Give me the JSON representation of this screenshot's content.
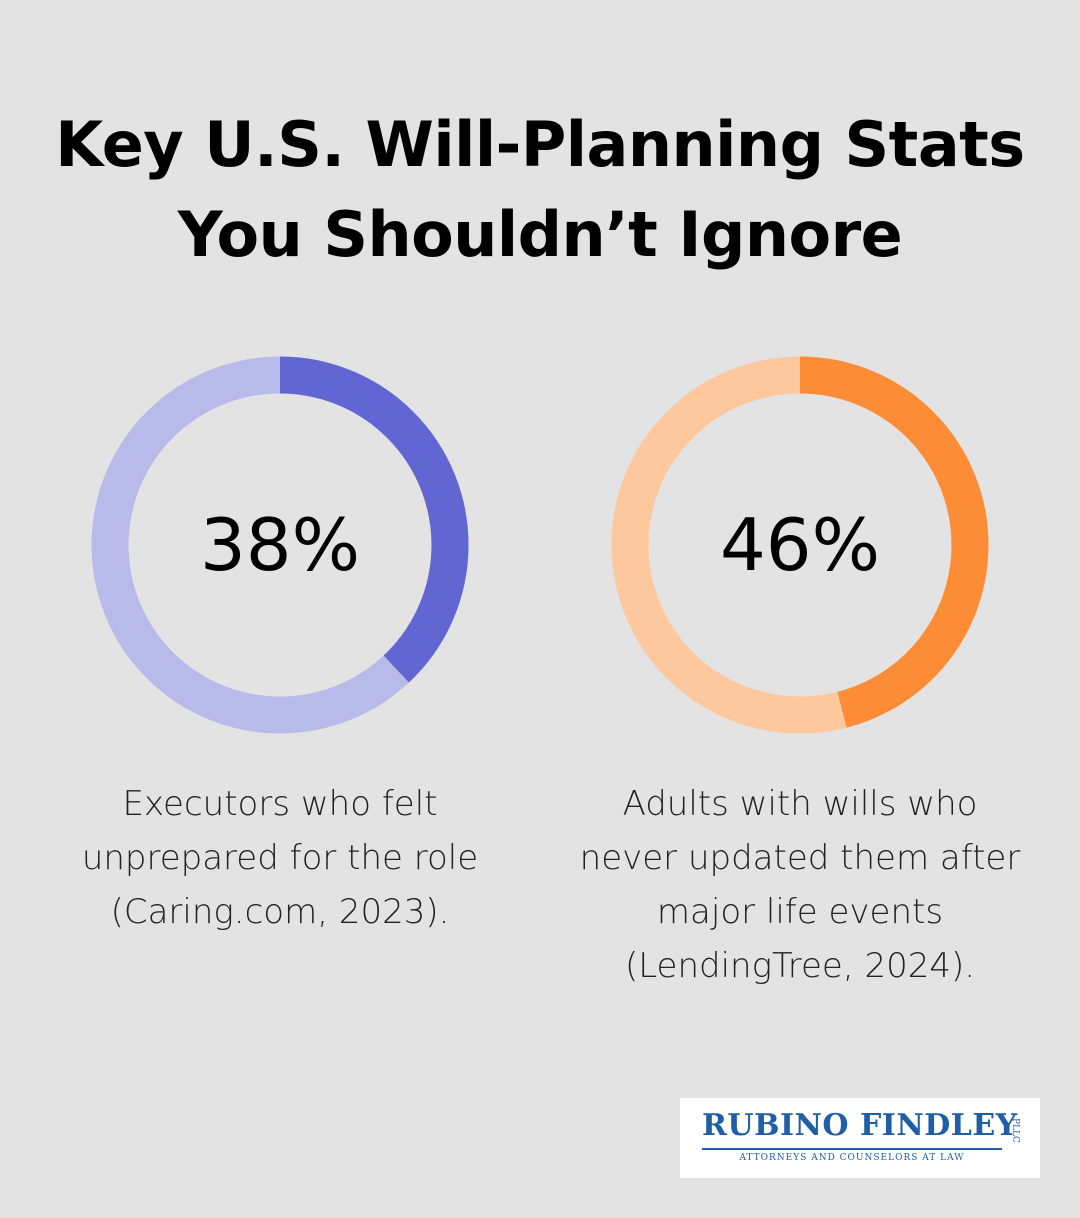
{
  "title_line1": "Key U.S. Will-Planning Stats",
  "title_line2": "You Shouldn’t Ignore",
  "chart_data": [
    {
      "type": "pie",
      "variant": "donut",
      "value": 38,
      "label": "38%",
      "caption": [
        "Executors who felt",
        "unprepared for the role",
        "(Caring.com, 2023)."
      ],
      "color_fill": "#6266d2",
      "color_track": "#b8bbea"
    },
    {
      "type": "pie",
      "variant": "donut",
      "value": 46,
      "label": "46%",
      "caption": [
        "Adults with wills who",
        "never updated them after",
        "major life events",
        "(LendingTree, 2024)."
      ],
      "color_fill": "#fd8c36",
      "color_track": "#fdc89d"
    }
  ],
  "logo": {
    "name": "RUBINO FINDLEY",
    "suffix": "PLLC",
    "tagline": "ATTORNEYS AND COUNSELORS AT LAW",
    "color": "#1f5fa8"
  }
}
